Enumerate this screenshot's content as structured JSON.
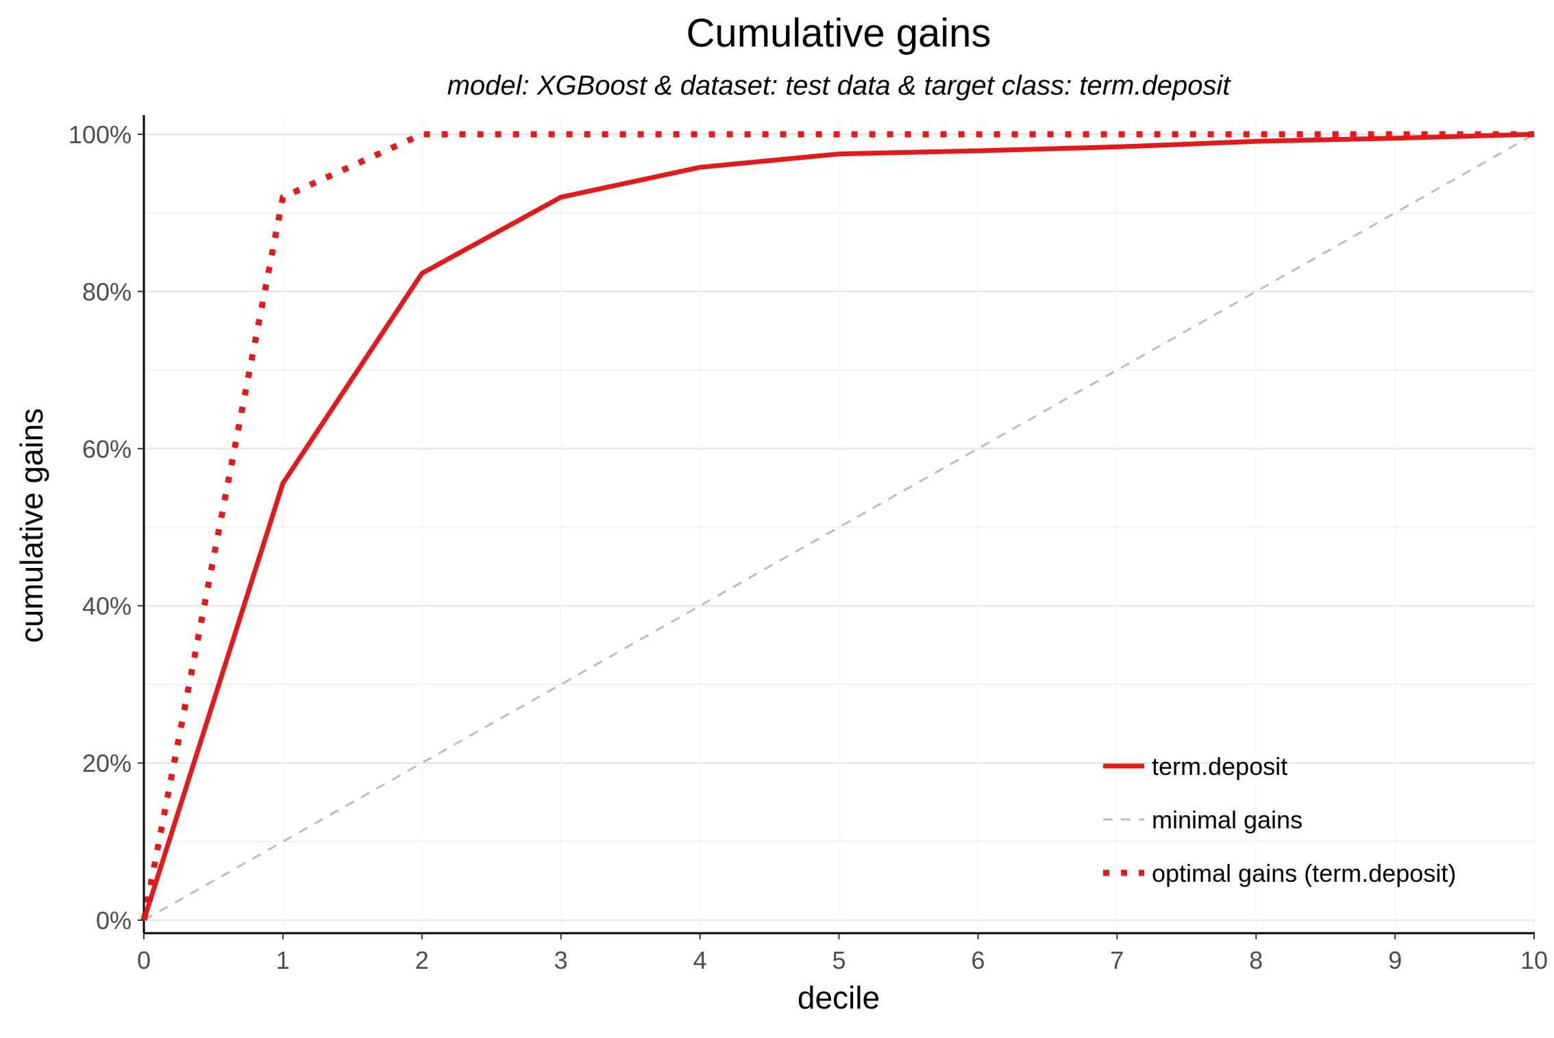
{
  "chart_data": {
    "type": "line",
    "title": "Cumulative gains",
    "subtitle": "model: XGBoost  &  dataset: test data  &  target class: term.deposit",
    "xlabel": "decile",
    "ylabel": "cumulative gains",
    "xlim": [
      0,
      10
    ],
    "ylim": [
      0,
      1
    ],
    "x_ticks": [
      0,
      1,
      2,
      3,
      4,
      5,
      6,
      7,
      8,
      9,
      10
    ],
    "x_tick_labels": [
      "0",
      "1",
      "2",
      "3",
      "4",
      "5",
      "6",
      "7",
      "8",
      "9",
      "10"
    ],
    "y_ticks": [
      0,
      0.2,
      0.4,
      0.6,
      0.8,
      1.0
    ],
    "y_tick_labels": [
      "0%",
      "20%",
      "40%",
      "60%",
      "80%",
      "100%"
    ],
    "grid": true,
    "legend_position": "bottom-right",
    "series": [
      {
        "name": "term.deposit",
        "style": "solid",
        "color": "#e31a1c",
        "x": [
          0,
          1,
          2,
          3,
          4,
          5,
          6,
          7,
          8,
          9,
          10
        ],
        "y": [
          0,
          0.556,
          0.823,
          0.92,
          0.958,
          0.975,
          0.979,
          0.984,
          0.991,
          0.995,
          1.0
        ]
      },
      {
        "name": "minimal gains",
        "style": "dashed",
        "color": "#bdbdbd",
        "x": [
          0,
          10
        ],
        "y": [
          0,
          1.0
        ]
      },
      {
        "name": "optimal gains (term.deposit)",
        "style": "dotted",
        "color": "#e31a1c",
        "x": [
          0,
          1,
          2,
          3,
          4,
          5,
          6,
          7,
          8,
          9,
          10
        ],
        "y": [
          0,
          0.92,
          1.0,
          1.0,
          1.0,
          1.0,
          1.0,
          1.0,
          1.0,
          1.0,
          1.0
        ]
      }
    ]
  }
}
